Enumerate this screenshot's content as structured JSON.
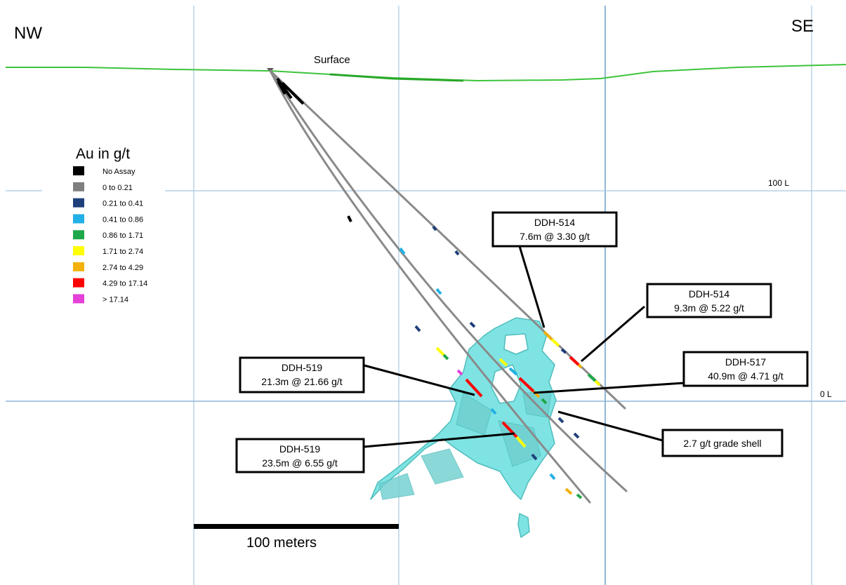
{
  "directions": {
    "left": "NW",
    "right": "SE"
  },
  "surface_label": "Surface",
  "levels": {
    "upper": "100 L",
    "lower": "0 L"
  },
  "legend": {
    "title": "Au in g/t",
    "items": [
      {
        "label": "No Assay",
        "color": "#000000"
      },
      {
        "label": "0 to 0.21",
        "color": "#7f7f7f"
      },
      {
        "label": "0.21 to 0.41",
        "color": "#1f3f7a"
      },
      {
        "label": "0.41 to 0.86",
        "color": "#22b0e6"
      },
      {
        "label": "0.86 to 1.71",
        "color": "#1fa84a"
      },
      {
        "label": "1.71 to 2.74",
        "color": "#ffff00"
      },
      {
        "label": "2.74 to 4.29",
        "color": "#f2b10c"
      },
      {
        "label": "4.29 to 17.14",
        "color": "#ff0000"
      },
      {
        "label": "> 17.14",
        "color": "#e540d8"
      }
    ]
  },
  "callouts": {
    "ddh514_upper": {
      "hole": "DDH-514",
      "interval": "7.6m @ 3.30 g/t"
    },
    "ddh514_lower": {
      "hole": "DDH-514",
      "interval": "9.3m @ 5.22 g/t"
    },
    "ddh519_upper": {
      "hole": "DDH-519",
      "interval": "21.3m @ 21.66 g/t"
    },
    "ddh517": {
      "hole": "DDH-517",
      "interval": "40.9m @ 4.71 g/t"
    },
    "ddh519_lower": {
      "hole": "DDH-519",
      "interval": "23.5m @ 6.55 g/t"
    },
    "grade_shell": {
      "text": "2.7 g/t grade shell"
    }
  },
  "scale_bar": {
    "label": "100 meters"
  },
  "colors": {
    "grid": "#a9c7e0",
    "surface": "#3cc43c",
    "shell_fill": "#7fe3e3",
    "shell_stroke": "#4fbcbc",
    "drillhole": "#8a8a8a"
  }
}
